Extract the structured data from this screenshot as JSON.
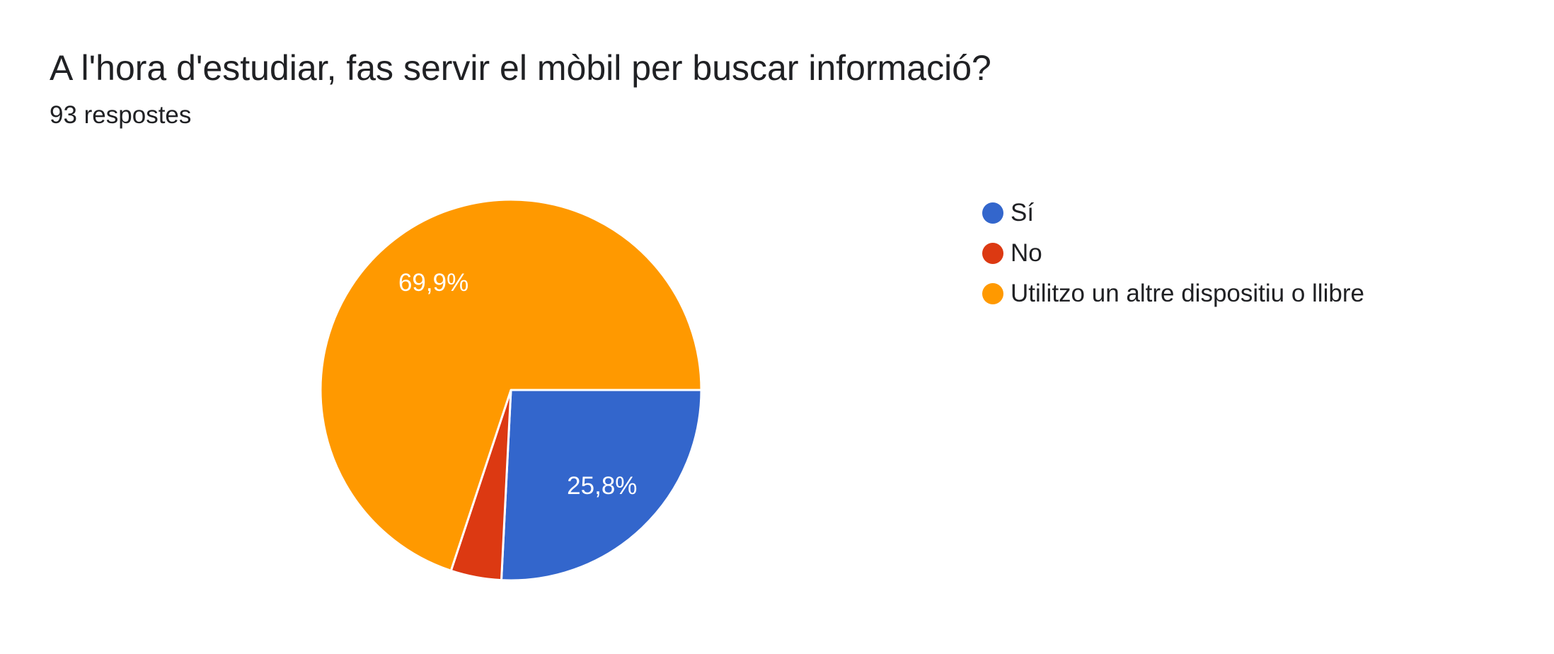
{
  "page": {
    "title": "A l'hora d'estudiar, fas servir el mòbil per buscar informació?",
    "subtitle": "93 respostes"
  },
  "chart_data": {
    "type": "pie",
    "title": "A l'hora d'estudiar, fas servir el mòbil per buscar informació?",
    "subtitle": "93 respostes",
    "total_responses": 93,
    "legend_position": "right",
    "start_angle_deg_clockwise_from_east": 0,
    "direction": "clockwise",
    "data_label_color": "#FFFFFF",
    "slice_separator_color": "#FFFFFF",
    "slices": [
      {
        "label": "Sí",
        "value_pct": 25.8,
        "display_label": "25,8%",
        "show_data_label": true,
        "color": "#3366CC"
      },
      {
        "label": "No",
        "value_pct": 4.3,
        "display_label": "",
        "show_data_label": false,
        "color": "#DC3912"
      },
      {
        "label": "Utilitzo un altre dispositiu o llibre",
        "value_pct": 69.9,
        "display_label": "69,9%",
        "show_data_label": true,
        "color": "#FF9900"
      }
    ]
  }
}
